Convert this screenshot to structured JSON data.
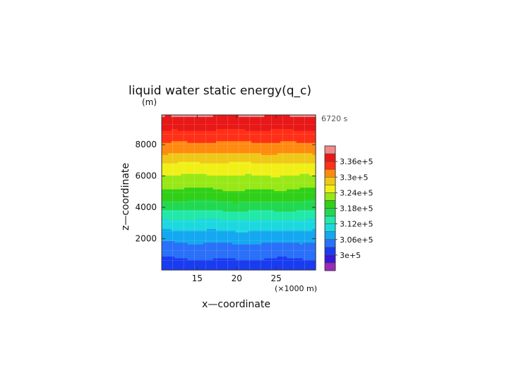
{
  "chart_data": {
    "type": "heatmap",
    "title": "liquid water static energy(q_c)",
    "xlabel": "x—coordinate",
    "ylabel": "z—coordinate",
    "y_unit_label": "(m)",
    "x_unit_label": "(×1000 m)",
    "time_label": "6720 s",
    "xlim": [
      10.5,
      30
    ],
    "ylim": [
      0,
      9900
    ],
    "x_ticks": [
      15,
      20,
      25
    ],
    "y_ticks": [
      2000,
      4000,
      6000,
      8000
    ],
    "grid": true,
    "colorbar": {
      "placement": "right",
      "labels": [
        "3.36e+5",
        "3.3e+5",
        "3.24e+5",
        "3.18e+5",
        "3.12e+5",
        "3.06e+5",
        "3e+5"
      ],
      "label_values": [
        336000,
        330000,
        324000,
        318000,
        312000,
        306000,
        300000
      ],
      "levels": [
        297000,
        300000,
        303000,
        306000,
        309000,
        312000,
        315000,
        318000,
        321000,
        324000,
        327000,
        330000,
        333000,
        336000,
        339000
      ],
      "colors": [
        "#9a2ab8",
        "#3a16d8",
        "#1a3cf0",
        "#2a70f8",
        "#14a8f0",
        "#1ed8e0",
        "#22e8a8",
        "#22d850",
        "#30d018",
        "#98e818",
        "#f0f018",
        "#f0c818",
        "#ff8a10",
        "#ff3018",
        "#e81818",
        "#f08a8a"
      ]
    },
    "profile": {
      "z": [
        0,
        500,
        1000,
        1500,
        2000,
        2500,
        3000,
        3500,
        4000,
        4500,
        5000,
        5500,
        6000,
        6500,
        7000,
        7500,
        8000,
        8500,
        9000,
        9500,
        9900
      ],
      "value": [
        301000,
        302300,
        303800,
        305300,
        306800,
        308800,
        311000,
        313300,
        316000,
        318300,
        320300,
        322000,
        323700,
        325600,
        327600,
        330200,
        332300,
        334200,
        336200,
        337700,
        339300
      ]
    }
  }
}
